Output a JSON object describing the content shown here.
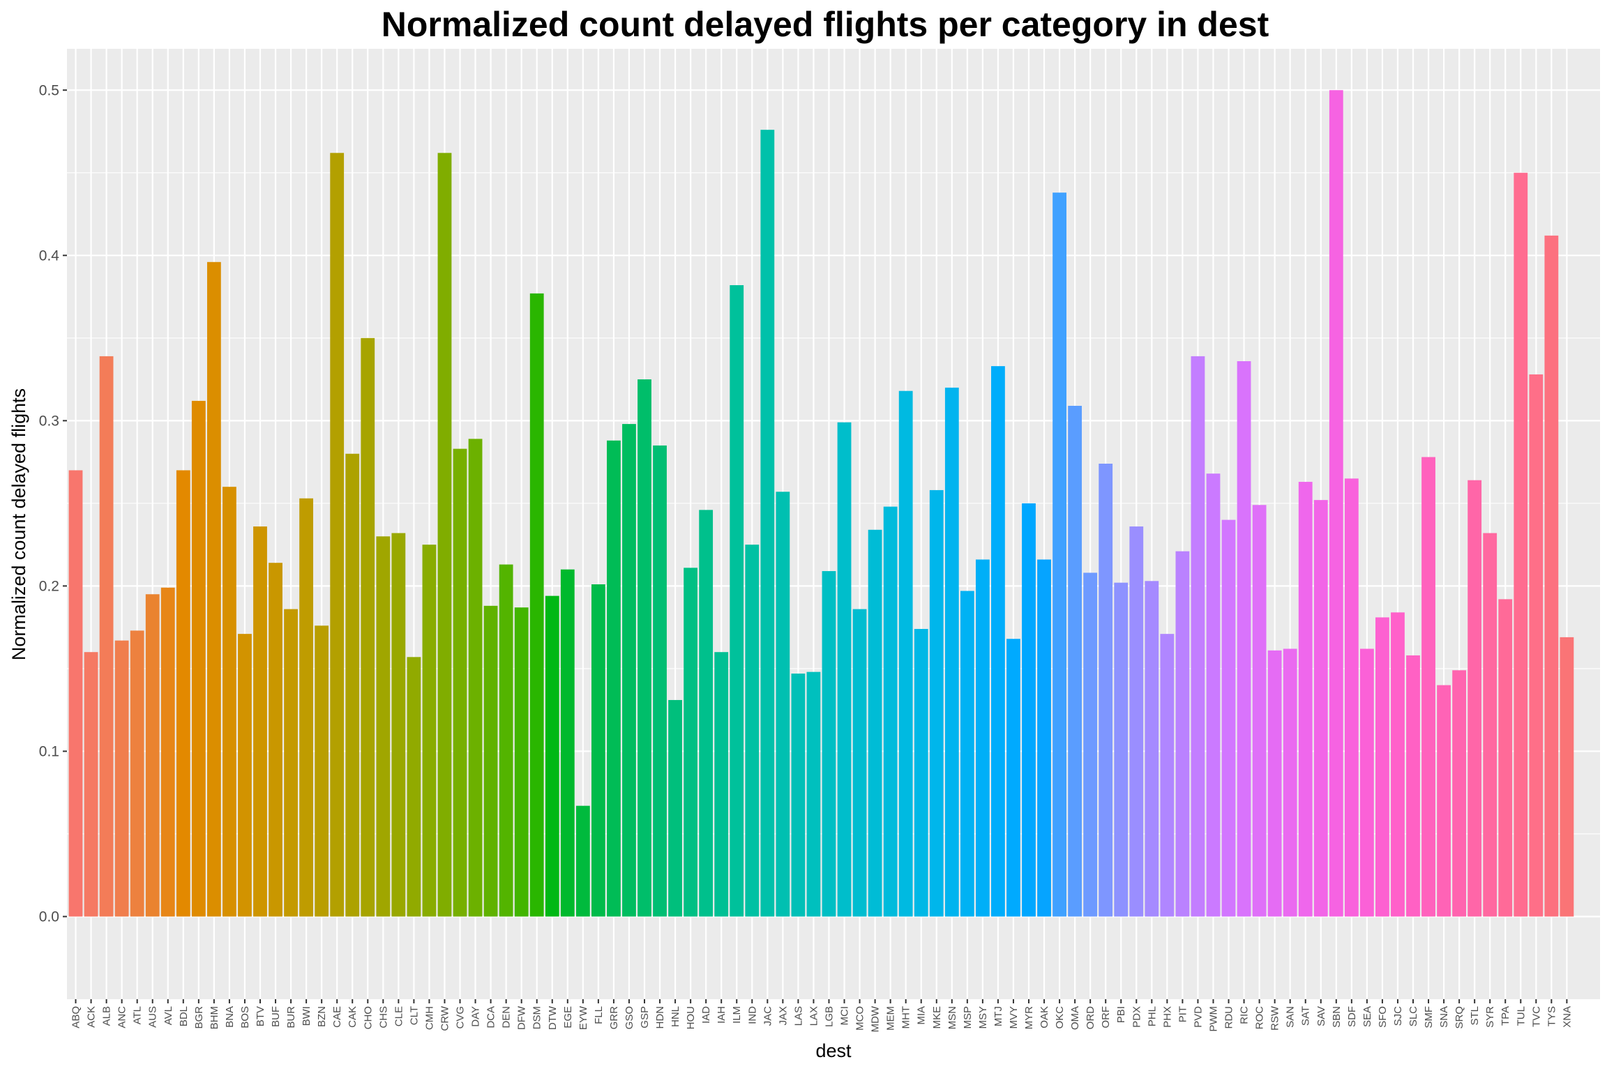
{
  "chart_data": {
    "type": "bar",
    "title": "Normalized count delayed flights per category in dest",
    "xlabel": "dest",
    "ylabel": "Normalized count delayed flights",
    "ylim": [
      -0.05,
      0.525
    ],
    "yticks": [
      0.0,
      0.1,
      0.2,
      0.3,
      0.4,
      0.5
    ],
    "ytick_labels": [
      "0.0",
      "0.1",
      "0.2",
      "0.3",
      "0.4",
      "0.5"
    ],
    "grid": true,
    "legend": "none",
    "categories": [
      "ABQ",
      "ACK",
      "ALB",
      "ANC",
      "ATL",
      "AUS",
      "AVL",
      "BDL",
      "BGR",
      "BHM",
      "BNA",
      "BOS",
      "BTV",
      "BUF",
      "BUR",
      "BWI",
      "BZN",
      "CAE",
      "CAK",
      "CHO",
      "CHS",
      "CLE",
      "CLT",
      "CMH",
      "CRW",
      "CVG",
      "DAY",
      "DCA",
      "DEN",
      "DFW",
      "DSM",
      "DTW",
      "EGE",
      "EYW",
      "FLL",
      "GRR",
      "GSO",
      "GSP",
      "HDN",
      "HNL",
      "HOU",
      "IAD",
      "IAH",
      "ILM",
      "IND",
      "JAC",
      "JAX",
      "LAS",
      "LAX",
      "LGB",
      "MCI",
      "MCO",
      "MDW",
      "MEM",
      "MHT",
      "MIA",
      "MKE",
      "MSN",
      "MSP",
      "MSY",
      "MTJ",
      "MVY",
      "MYR",
      "OAK",
      "OKC",
      "OMA",
      "ORD",
      "ORF",
      "PBI",
      "PDX",
      "PHL",
      "PHX",
      "PIT",
      "PVD",
      "PWM",
      "RDU",
      "RIC",
      "ROC",
      "RSW",
      "SAN",
      "SAT",
      "SAV",
      "SBN",
      "SDF",
      "SEA",
      "SFO",
      "SJC",
      "SLC",
      "SMF",
      "SNA",
      "SRQ",
      "STL",
      "SYR",
      "TPA",
      "TUL",
      "TVC",
      "TYS",
      "XNA"
    ],
    "values": [
      0.27,
      0.16,
      0.339,
      0.167,
      0.173,
      0.195,
      0.199,
      0.27,
      0.312,
      0.396,
      0.26,
      0.171,
      0.236,
      0.214,
      0.186,
      0.253,
      0.176,
      0.462,
      0.28,
      0.35,
      0.23,
      0.232,
      0.157,
      0.225,
      0.462,
      0.283,
      0.289,
      0.188,
      0.213,
      0.187,
      0.377,
      0.194,
      0.21,
      0.067,
      0.201,
      0.288,
      0.298,
      0.325,
      0.285,
      0.131,
      0.211,
      0.246,
      0.16,
      0.382,
      0.225,
      0.476,
      0.257,
      0.147,
      0.148,
      0.209,
      0.299,
      0.186,
      0.234,
      0.248,
      0.318,
      0.174,
      0.258,
      0.32,
      0.197,
      0.216,
      0.333,
      0.168,
      0.25,
      0.216,
      0.438,
      0.309,
      0.208,
      0.274,
      0.202,
      0.236,
      0.203,
      0.171,
      0.221,
      0.339,
      0.268,
      0.24,
      0.336,
      0.249,
      0.161,
      0.162,
      0.263,
      0.252,
      0.5,
      0.265,
      0.162,
      0.181,
      0.184,
      0.158,
      0.278,
      0.14,
      0.149,
      0.264,
      0.232,
      0.192,
      0.45,
      0.328,
      0.412,
      0.169
    ]
  }
}
